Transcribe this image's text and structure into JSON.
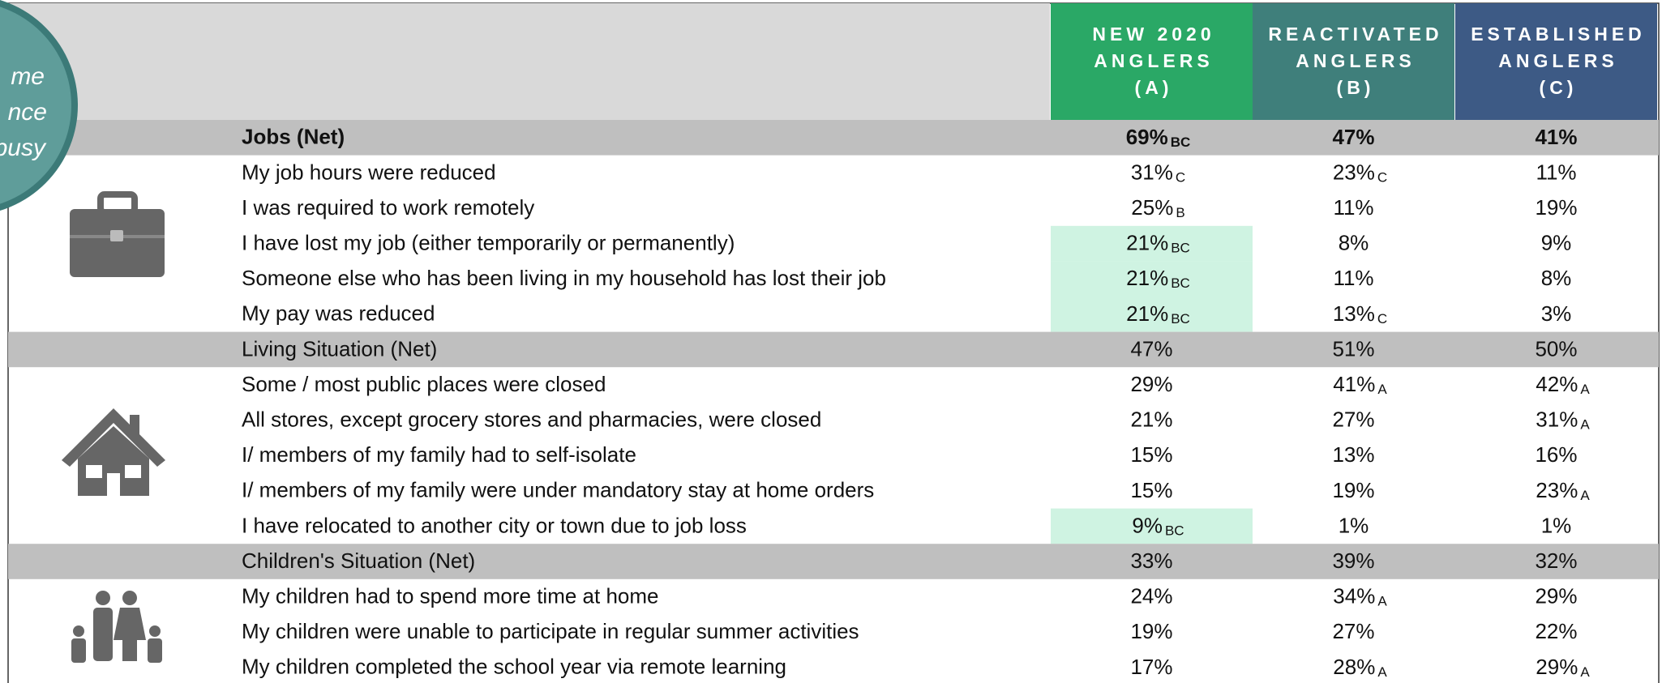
{
  "callout": [
    "me",
    "nce",
    "busy"
  ],
  "table": {
    "columns": [
      {
        "lines": [
          "NEW 2020",
          "ANGLERS",
          "(A)"
        ],
        "color": "#2aa866"
      },
      {
        "lines": [
          "REACTIVATED",
          "ANGLERS",
          "(B)"
        ],
        "color": "#3f7f7b"
      },
      {
        "lines": [
          "ESTABLISHED",
          "ANGLERS",
          "(C)"
        ],
        "color": "#3d5a85"
      }
    ],
    "rows": [
      {
        "label": "Jobs (Net)",
        "net": true,
        "bold": true,
        "cells": [
          {
            "value": "69%",
            "sig": "BC"
          },
          {
            "value": "47%"
          },
          {
            "value": "41%"
          }
        ]
      },
      {
        "label": "My job hours were reduced",
        "cells": [
          {
            "value": "31%",
            "sig": "C"
          },
          {
            "value": "23%",
            "sig": "C"
          },
          {
            "value": "11%"
          }
        ]
      },
      {
        "label": "I was required to work remotely",
        "cells": [
          {
            "value": "25%",
            "sig": "B"
          },
          {
            "value": "11%"
          },
          {
            "value": "19%"
          }
        ]
      },
      {
        "label": "I have lost my job (either temporarily or permanently)",
        "cells": [
          {
            "value": "21%",
            "sig": "BC",
            "highlight": true
          },
          {
            "value": "8%"
          },
          {
            "value": "9%"
          }
        ]
      },
      {
        "label": "Someone else who has been living in my household has lost their job",
        "cells": [
          {
            "value": "21%",
            "sig": "BC",
            "highlight": true
          },
          {
            "value": "11%"
          },
          {
            "value": "8%"
          }
        ]
      },
      {
        "label": "My pay was reduced",
        "cells": [
          {
            "value": "21%",
            "sig": "BC",
            "highlight": true
          },
          {
            "value": "13%",
            "sig": "C"
          },
          {
            "value": "3%"
          }
        ]
      },
      {
        "label": "Living Situation (Net)",
        "net": true,
        "cells": [
          {
            "value": "47%"
          },
          {
            "value": "51%"
          },
          {
            "value": "50%"
          }
        ]
      },
      {
        "label": "Some / most public places were closed",
        "cells": [
          {
            "value": "29%"
          },
          {
            "value": "41%",
            "sig": "A"
          },
          {
            "value": "42%",
            "sig": "A"
          }
        ]
      },
      {
        "label": "All stores, except grocery stores and pharmacies, were closed",
        "cells": [
          {
            "value": "21%"
          },
          {
            "value": "27%"
          },
          {
            "value": "31%",
            "sig": "A"
          }
        ]
      },
      {
        "label": "I/ members of my family had to self-isolate",
        "cells": [
          {
            "value": "15%"
          },
          {
            "value": "13%"
          },
          {
            "value": "16%"
          }
        ]
      },
      {
        "label": "I/ members of my family were under mandatory stay at home orders",
        "cells": [
          {
            "value": "15%"
          },
          {
            "value": "19%"
          },
          {
            "value": "23%",
            "sig": "A"
          }
        ]
      },
      {
        "label": "I have relocated to another city or town due to job loss",
        "cells": [
          {
            "value": "9%",
            "sig": "BC",
            "highlight": true
          },
          {
            "value": "1%"
          },
          {
            "value": "1%"
          }
        ]
      },
      {
        "label": "Children's Situation (Net)",
        "net": true,
        "cells": [
          {
            "value": "33%"
          },
          {
            "value": "39%"
          },
          {
            "value": "32%"
          }
        ]
      },
      {
        "label": "My children had to spend more time at home",
        "cells": [
          {
            "value": "24%"
          },
          {
            "value": "34%",
            "sig": "A"
          },
          {
            "value": "29%"
          }
        ]
      },
      {
        "label": "My children were unable to participate in regular summer activities",
        "cells": [
          {
            "value": "19%"
          },
          {
            "value": "27%"
          },
          {
            "value": "22%"
          }
        ]
      },
      {
        "label": "My children completed the school year via remote learning",
        "cells": [
          {
            "value": "17%"
          },
          {
            "value": "28%",
            "sig": "A"
          },
          {
            "value": "29%",
            "sig": "A"
          }
        ]
      }
    ]
  }
}
